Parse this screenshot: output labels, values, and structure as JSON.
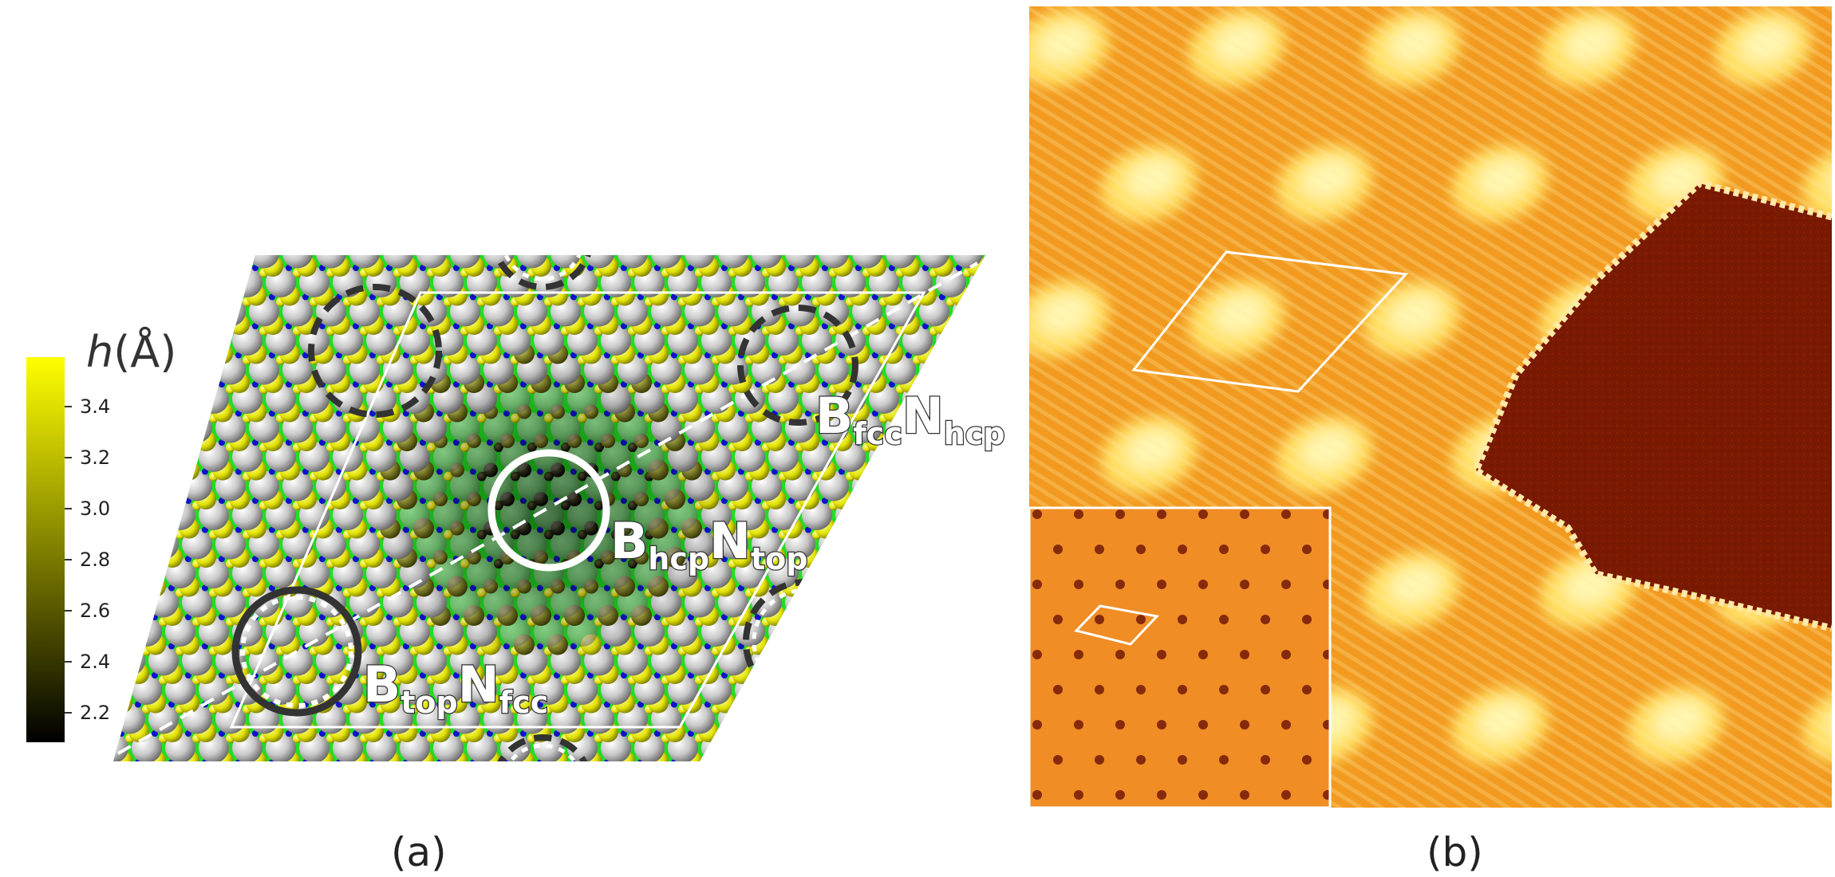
{
  "figure": {
    "panel_a": {
      "label": "(a)",
      "colorbar": {
        "title": "h(Å)",
        "ticks": [
          "3.4",
          "3.2",
          "3.0",
          "2.8",
          "2.6",
          "2.4",
          "2.2"
        ],
        "colors": [
          "#ffff00",
          "#000000"
        ]
      },
      "sites": [
        {
          "B": "B",
          "B_sub": "fcc",
          "N": "N",
          "N_sub": "hcp"
        },
        {
          "B": "B",
          "B_sub": "hcp",
          "N": "N",
          "N_sub": "top"
        },
        {
          "B": "B",
          "B_sub": "top",
          "N": "N",
          "N_sub": "fcc"
        }
      ],
      "atom_colors": {
        "substrate": "#c8c8c8",
        "boron": "#e2e200",
        "nitrogen": "#1010cc",
        "background": "#22dd22"
      }
    },
    "panel_b": {
      "label": "(b)",
      "stm_colors": [
        "#f29a1f",
        "#ffe26a",
        "#7a1a02"
      ]
    }
  }
}
